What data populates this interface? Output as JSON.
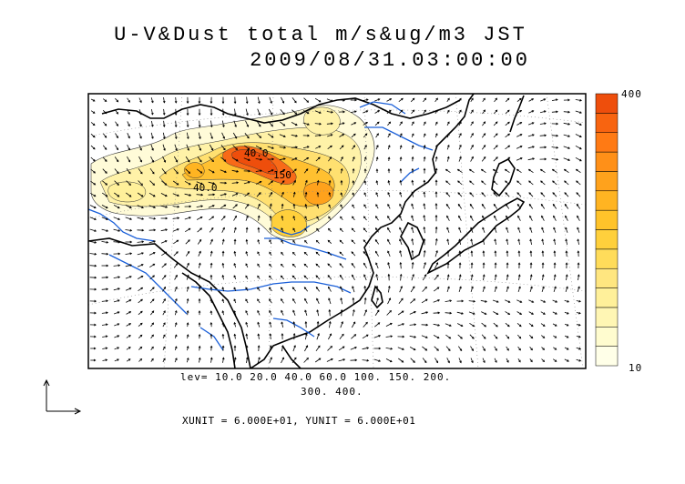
{
  "title": {
    "line1": "U-V&Dust total m/s&ug/m3 JST",
    "line2": "2009/08/31.03:00:00"
  },
  "colorbar": {
    "max_label": "400",
    "min_label": "10",
    "colors": [
      "#ffffe8",
      "#fffccf",
      "#fff6b4",
      "#fff09a",
      "#ffe680",
      "#ffdc5a",
      "#ffd03c",
      "#ffc32a",
      "#ffb422",
      "#ffa21c",
      "#ff9018",
      "#ff7a14",
      "#f86410",
      "#ee4e0c"
    ]
  },
  "contour_labels": [
    "40.0",
    "150",
    "40.0"
  ],
  "levels": {
    "line1": "lev= 10.0 20.0 40.0 60.0 100. 150. 200.",
    "line2": "300. 400."
  },
  "units": "XUNIT = 6.000E+01, YUNIT = 6.000E+01",
  "map": {
    "coast_color": "#000000",
    "river_color": "#1a5fd8",
    "grid_color": "#888888"
  }
}
